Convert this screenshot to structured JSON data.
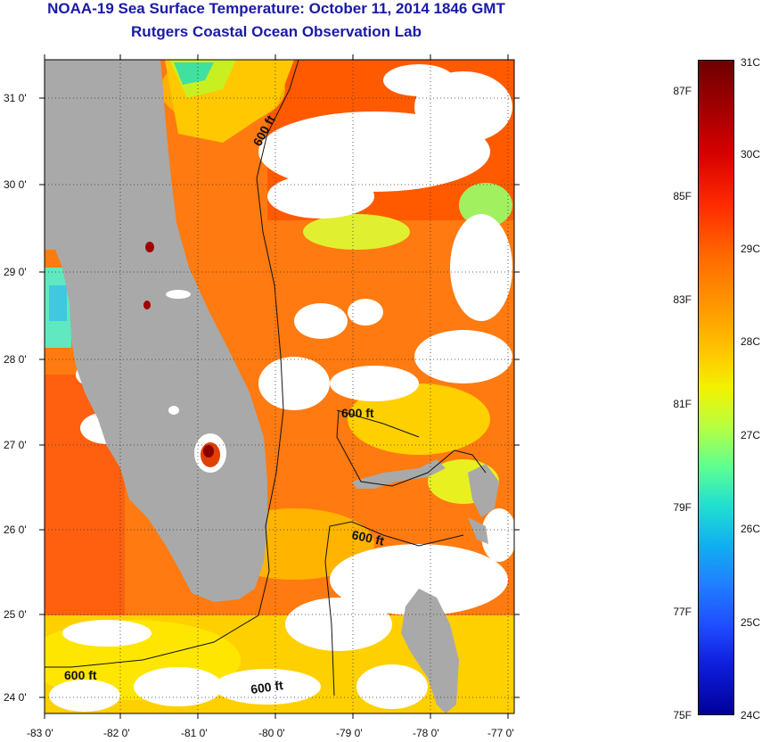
{
  "header": {
    "title": "NOAA-19 Sea Surface Temperature:  October 11, 2014 1846 GMT",
    "subtitle": "Rutgers Coastal Ocean Observation Lab"
  },
  "map": {
    "latitude_labels": [
      "31 0'",
      "30 0'",
      "29 0'",
      "28 0'",
      "27 0'",
      "26 0'",
      "25 0'",
      "24 0'"
    ],
    "longitude_labels": [
      "-83 0'",
      "-82 0'",
      "-81 0'",
      "-80 0'",
      "-79 0'",
      "-78 0'",
      "-77 0'"
    ],
    "contour_label": "600 ft",
    "colors": {
      "land": "#a9a9a9",
      "cloud": "#ffffff",
      "warm_sea": "#ff6a10",
      "mid_sea": "#ffb400",
      "cool_sea": "#c8f020",
      "coastal_sea": "#40e0b0"
    }
  },
  "colorbar": {
    "celsius_labels": [
      "31C",
      "30C",
      "29C",
      "28C",
      "27C",
      "26C",
      "25C",
      "24C"
    ],
    "fahrenheit_labels": [
      "87F",
      "85F",
      "83F",
      "81F",
      "79F",
      "77F",
      "75F"
    ]
  }
}
